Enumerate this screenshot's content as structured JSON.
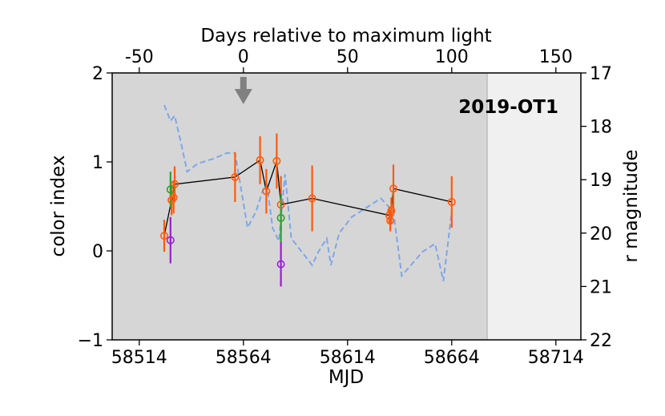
{
  "chart_data": {
    "type": "scatter",
    "title": "2019-OT1",
    "xlabel": "MJD",
    "ylabel": "color index",
    "top_xlabel": "Days relative to maximum light",
    "right_ylabel": "r magnitude",
    "xlim": [
      58501,
      58726
    ],
    "ylim": [
      -1,
      2
    ],
    "right_ylim": [
      22,
      17
    ],
    "top_offset_mjd": 58564,
    "x_ticks": [
      58514,
      58564,
      58614,
      58664,
      58714
    ],
    "x_tick_labels": [
      "58514",
      "58564",
      "58614",
      "58664",
      "58714"
    ],
    "y_ticks": [
      -1,
      0,
      1,
      2
    ],
    "y_tick_labels": [
      "−1",
      "0",
      "1",
      "2"
    ],
    "top_ticks": [
      -50,
      0,
      50,
      100,
      150
    ],
    "top_tick_labels": [
      "-50",
      "0",
      "50",
      "100",
      "150"
    ],
    "right_ticks": [
      17,
      18,
      19,
      20,
      21,
      22
    ],
    "right_tick_labels": [
      "17",
      "18",
      "19",
      "20",
      "21",
      "22"
    ],
    "shaded_region": {
      "x_start": 58501,
      "x_end": 58681,
      "color": "#d6d6d6"
    },
    "unshaded_color": "#f0f0f0",
    "max_light_marker": {
      "mjd": 58564,
      "color": "#808080"
    },
    "colors": {
      "orange": "#ff5a0a",
      "green": "#2e9e2e",
      "purple": "#9a1ed2",
      "line": "#000000",
      "r_mag": "#7fa6e8"
    },
    "series": [
      {
        "name": "color (orange)",
        "color_key": "orange",
        "connected": true,
        "points": [
          {
            "x": 58526,
            "y": 0.17,
            "err": 0.18
          },
          {
            "x": 58529.5,
            "y": 0.57,
            "err": 0.17
          },
          {
            "x": 58530.5,
            "y": 0.6,
            "err": 0.18
          },
          {
            "x": 58531,
            "y": 0.75,
            "err": 0.2
          },
          {
            "x": 58560,
            "y": 0.83,
            "err": 0.28
          },
          {
            "x": 58572,
            "y": 1.02,
            "err": 0.27
          },
          {
            "x": 58575,
            "y": 0.67,
            "err": 0.25
          },
          {
            "x": 58580,
            "y": 1.01,
            "err": 0.31
          },
          {
            "x": 58582,
            "y": 0.52,
            "err": 0.32
          },
          {
            "x": 58597,
            "y": 0.59,
            "err": 0.37
          },
          {
            "x": 58634,
            "y": 0.4,
            "err": 0.1
          },
          {
            "x": 58634.5,
            "y": 0.34,
            "err": 0.12
          },
          {
            "x": 58635,
            "y": 0.45,
            "err": 0.15
          },
          {
            "x": 58636,
            "y": 0.7,
            "err": 0.27
          },
          {
            "x": 58664,
            "y": 0.55,
            "err": 0.29
          }
        ]
      },
      {
        "name": "color (green)",
        "color_key": "green",
        "connected": false,
        "points": [
          {
            "x": 58529,
            "y": 0.69,
            "err": 0.2
          },
          {
            "x": 58582,
            "y": 0.37,
            "err": 0.27
          }
        ]
      },
      {
        "name": "color (purple)",
        "color_key": "purple",
        "connected": false,
        "points": [
          {
            "x": 58529,
            "y": 0.12,
            "err": 0.26
          },
          {
            "x": 58582,
            "y": -0.15,
            "err": 0.25
          }
        ]
      },
      {
        "name": "r magnitude",
        "color_key": "r_mag",
        "axis": "right",
        "style": "dashed",
        "points": [
          {
            "x": 58526,
            "y": 17.6
          },
          {
            "x": 58529,
            "y": 17.9
          },
          {
            "x": 58531,
            "y": 17.8
          },
          {
            "x": 58534,
            "y": 18.3
          },
          {
            "x": 58537,
            "y": 18.85
          },
          {
            "x": 58542,
            "y": 18.7
          },
          {
            "x": 58550,
            "y": 18.6
          },
          {
            "x": 58556,
            "y": 18.5
          },
          {
            "x": 58560,
            "y": 18.5
          },
          {
            "x": 58566,
            "y": 19.9
          },
          {
            "x": 58570,
            "y": 19.6
          },
          {
            "x": 58575,
            "y": 19.0
          },
          {
            "x": 58578,
            "y": 19.9
          },
          {
            "x": 58581,
            "y": 20.15
          },
          {
            "x": 58584,
            "y": 18.9
          },
          {
            "x": 58587,
            "y": 20.1
          },
          {
            "x": 58590,
            "y": 20.25
          },
          {
            "x": 58597,
            "y": 20.6
          },
          {
            "x": 58600,
            "y": 20.35
          },
          {
            "x": 58604,
            "y": 20.1
          },
          {
            "x": 58606,
            "y": 20.6
          },
          {
            "x": 58610,
            "y": 20.0
          },
          {
            "x": 58616,
            "y": 19.7
          },
          {
            "x": 58624,
            "y": 19.5
          },
          {
            "x": 58630,
            "y": 19.35
          },
          {
            "x": 58636,
            "y": 19.6
          },
          {
            "x": 58640,
            "y": 20.8
          },
          {
            "x": 58650,
            "y": 20.35
          },
          {
            "x": 58656,
            "y": 20.2
          },
          {
            "x": 58660,
            "y": 20.9
          },
          {
            "x": 58664,
            "y": 19.6
          }
        ]
      }
    ]
  }
}
